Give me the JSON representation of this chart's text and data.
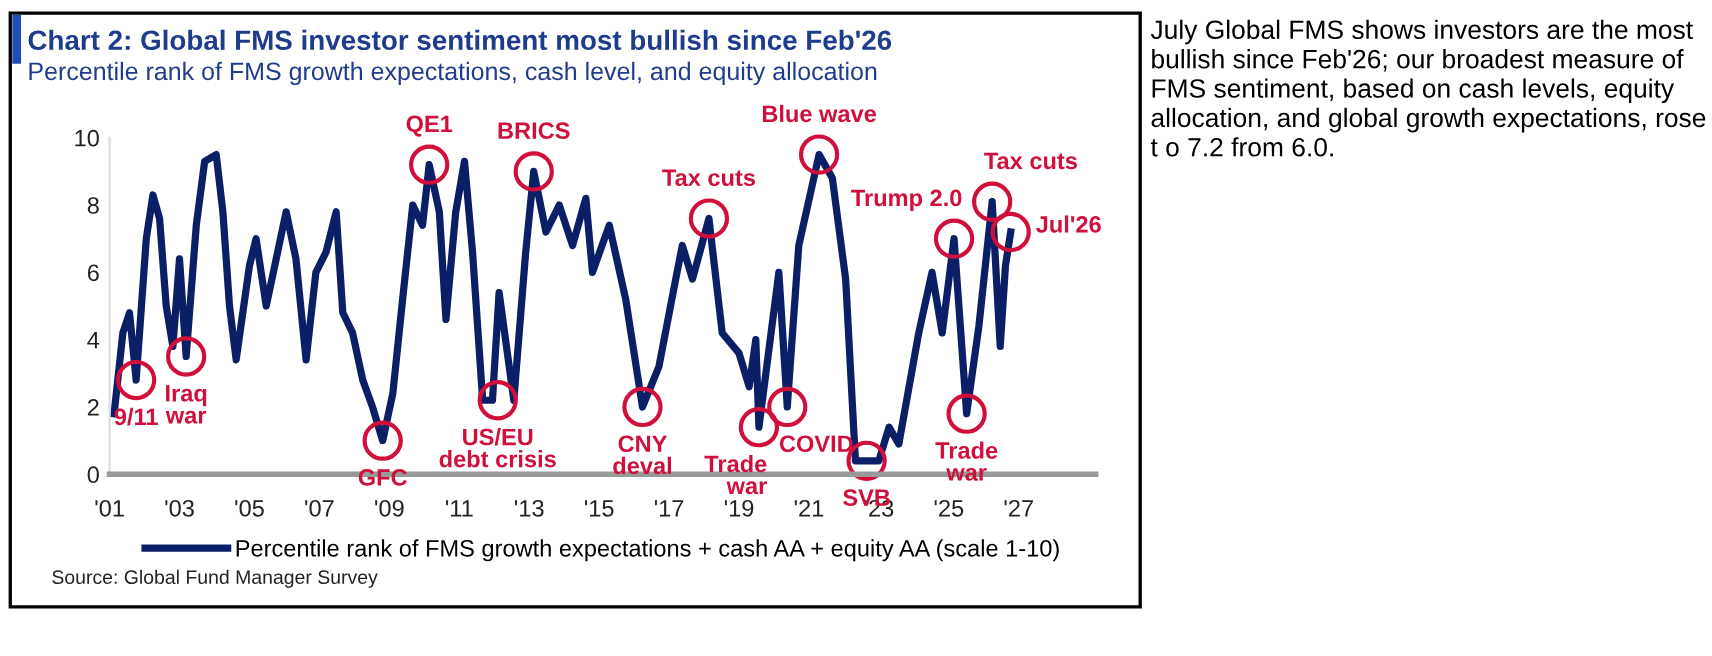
{
  "chart_data": [
    {
      "type": "line",
      "title": "Chart 2: Global FMS investor sentiment most bullish since Feb'26",
      "subtitle": "Percentile rank of FMS growth expectations, cash level, and equity allocation",
      "series": [
        {
          "name": "Percentile rank of FMS growth expectations + cash AA + equity AA (scale 1-10)",
          "color": "#0b1f66",
          "x": [
            2001.13,
            2001.38,
            2001.57,
            2001.76,
            2002.05,
            2002.24,
            2002.43,
            2002.62,
            2002.81,
            2003.0,
            2003.19,
            2003.48,
            2003.72,
            2004.05,
            2004.24,
            2004.43,
            2004.62,
            2005.0,
            2005.19,
            2005.48,
            2006.05,
            2006.33,
            2006.62,
            2006.9,
            2007.19,
            2007.48,
            2007.67,
            2007.95,
            2008.24,
            2008.52,
            2008.81,
            2009.1,
            2009.38,
            2009.67,
            2009.95,
            2010.14,
            2010.43,
            2010.62,
            2010.9,
            2011.15,
            2011.38,
            2011.67,
            2011.95,
            2012.14,
            2012.56,
            2012.9,
            2013.13,
            2013.48,
            2013.86,
            2014.24,
            2014.62,
            2014.81,
            2015.29,
            2015.76,
            2016.24,
            2016.71,
            2017.19,
            2017.38,
            2017.67,
            2018.14,
            2018.52,
            2019.0,
            2019.29,
            2019.48,
            2019.57,
            2020.14,
            2020.38,
            2020.71,
            2021.29,
            2021.67,
            2022.05,
            2022.33,
            2022.65,
            2023.0,
            2023.29,
            2023.57,
            2024.14,
            2024.52,
            2024.81,
            2025.15,
            2025.51,
            2025.86,
            2026.24,
            2026.47,
            2026.62,
            2026.77
          ],
          "values": [
            1.8,
            4.2,
            4.8,
            2.8,
            7.0,
            8.3,
            7.6,
            5.0,
            3.8,
            6.4,
            3.5,
            7.4,
            9.3,
            9.5,
            7.8,
            5.0,
            3.4,
            6.2,
            7.0,
            5.0,
            7.8,
            6.4,
            3.4,
            6.0,
            6.6,
            7.8,
            4.8,
            4.2,
            2.8,
            2.0,
            1.0,
            2.4,
            5.2,
            8.0,
            7.4,
            9.2,
            7.8,
            4.6,
            7.8,
            9.3,
            6.6,
            2.2,
            2.2,
            5.4,
            2.2,
            6.6,
            9.0,
            7.2,
            8.0,
            6.8,
            8.2,
            6.0,
            7.4,
            5.2,
            2.0,
            3.2,
            5.8,
            6.8,
            5.8,
            7.6,
            4.2,
            3.6,
            2.6,
            4.0,
            1.4,
            6.0,
            2.0,
            6.8,
            9.5,
            8.8,
            5.8,
            0.4,
            0.4,
            0.4,
            1.4,
            0.9,
            4.2,
            6.0,
            4.2,
            7.0,
            1.8,
            4.4,
            8.1,
            3.8,
            6.2,
            7.2
          ]
        }
      ],
      "xlim": [
        2001,
        2029.2
      ],
      "xticks": [
        {
          "value": 2001,
          "label": "'01"
        },
        {
          "value": 2003,
          "label": "'03"
        },
        {
          "value": 2005,
          "label": "'05"
        },
        {
          "value": 2007,
          "label": "'07"
        },
        {
          "value": 2009,
          "label": "'09"
        },
        {
          "value": 2011,
          "label": "'11"
        },
        {
          "value": 2013,
          "label": "'13"
        },
        {
          "value": 2015,
          "label": "'15"
        },
        {
          "value": 2017,
          "label": "'17"
        },
        {
          "value": 2019,
          "label": "'19"
        },
        {
          "value": 2021,
          "label": "'21"
        },
        {
          "value": 2023,
          "label": "'23"
        },
        {
          "value": 2025,
          "label": "'25"
        },
        {
          "value": 2027,
          "label": "'27"
        }
      ],
      "ylim": [
        0,
        10
      ],
      "yticks": [
        0,
        2,
        4,
        6,
        8,
        10
      ],
      "grid": false,
      "legend": "bottom",
      "marker": "none",
      "line_style": "solid",
      "annotations": [
        {
          "text": "9/11",
          "x": 2001.76,
          "y": 2.8
        },
        {
          "text": "Iraq\nwar",
          "x": 2003.19,
          "y": 3.5
        },
        {
          "text": "GFC",
          "x": 2008.81,
          "y": 1.0
        },
        {
          "text": "QE1",
          "x": 2010.14,
          "y": 9.2
        },
        {
          "text": "US/EU\ndebt crisis",
          "x": 2012.1,
          "y": 2.2
        },
        {
          "text": "BRICS",
          "x": 2013.13,
          "y": 9.0
        },
        {
          "text": "CNY\ndeval",
          "x": 2016.24,
          "y": 2.0
        },
        {
          "text": "Tax cuts",
          "x": 2018.14,
          "y": 7.6
        },
        {
          "text": "Trade\nwar",
          "x": 2019.57,
          "y": 1.4
        },
        {
          "text": "COVID",
          "x": 2020.38,
          "y": 2.0
        },
        {
          "text": "Blue wave",
          "x": 2021.29,
          "y": 9.5
        },
        {
          "text": "SVB",
          "x": 2022.65,
          "y": 0.4
        },
        {
          "text": "Trump 2.0",
          "x": 2025.15,
          "y": 7.0
        },
        {
          "text": "Trade\nwar",
          "x": 2025.51,
          "y": 1.8
        },
        {
          "text": "Tax cuts",
          "x": 2026.24,
          "y": 8.1
        },
        {
          "text": "Jul'26",
          "x": 2026.77,
          "y": 7.2
        },
        "Source: Global Fund Manager Survey"
      ]
    },
    {
      "type": "other",
      "annotations": [
        "July Global FMS shows investors are the most bullish since Feb'26; our broadest measure of FMS sentiment, based on cash levels, equity allocation, and global growth expectations, rose t o 7.2 from 6.0."
      ]
    }
  ]
}
